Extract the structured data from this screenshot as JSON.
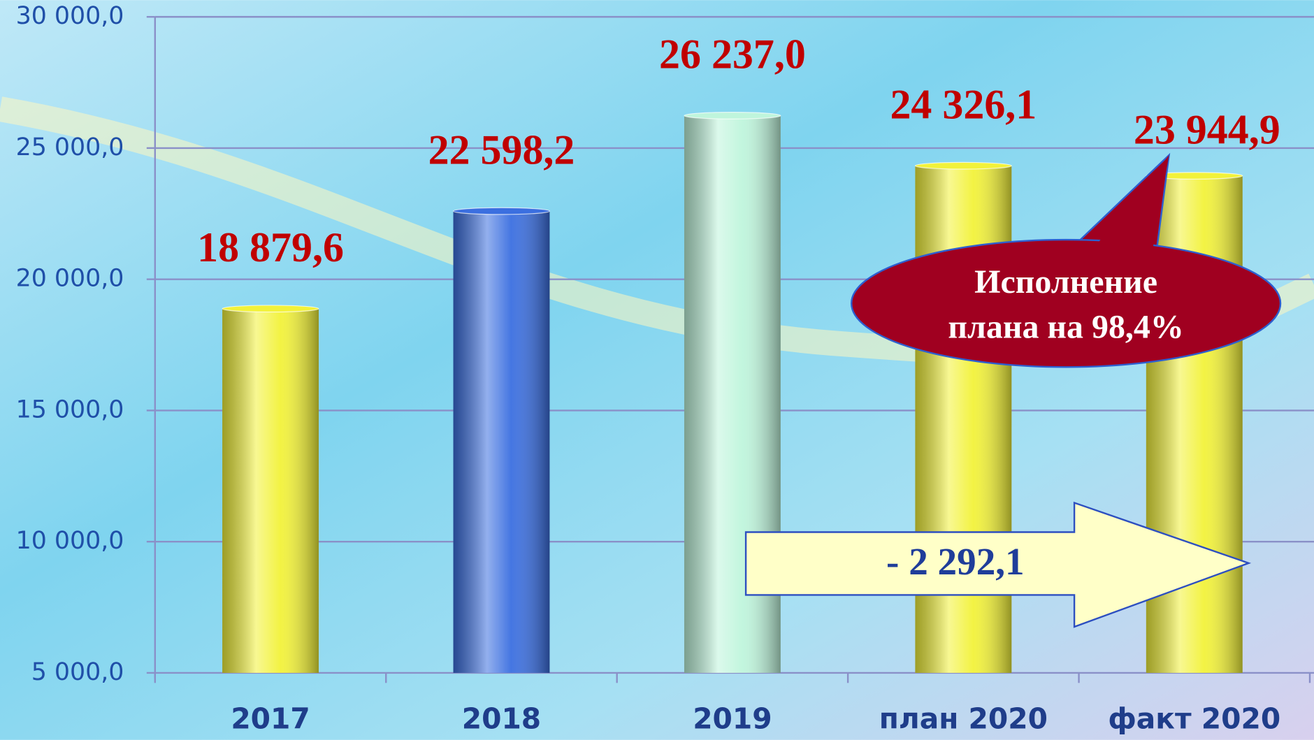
{
  "chart_data": {
    "type": "bar",
    "categories": [
      "2017",
      "2018",
      "2019",
      "план 2020",
      "факт 2020"
    ],
    "values": [
      18879.6,
      22598.2,
      26237.0,
      24326.1,
      23944.9
    ],
    "value_labels": [
      "18 879,6",
      "22 598,2",
      "26 237,0",
      "24 326,1",
      "23 944,9"
    ],
    "colors": [
      "#f2f23a",
      "#3b6fe0",
      "#bff5dc",
      "#f2f23a",
      "#f2f23a"
    ],
    "ylim": [
      5000,
      30000
    ],
    "yticks": [
      {
        "value": 5000,
        "label": "5 000,0"
      },
      {
        "value": 10000,
        "label": "10 000,0"
      },
      {
        "value": 15000,
        "label": "15 000,0"
      },
      {
        "value": 20000,
        "label": "20 000,0"
      },
      {
        "value": 25000,
        "label": "25 000,0"
      },
      {
        "value": 30000,
        "label": "30 000,0"
      }
    ],
    "grid": true,
    "annotations": {
      "callout": [
        "Исполнение",
        "плана на 98,4%"
      ],
      "arrow": "- 2 292,1"
    }
  }
}
